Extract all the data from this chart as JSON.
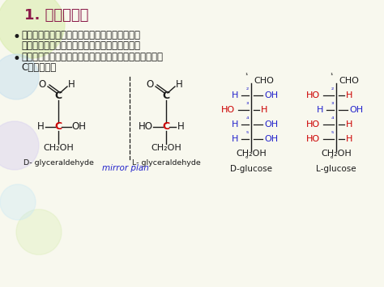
{
  "title": "1. 单糖的结构",
  "title_color": "#8B1A4A",
  "bg_color": "#f8f8ee",
  "bullet1a": "根据所含碳原子数目分为丙糖、丁糖、戊糖和己",
  "bullet1b": "糖、庚糖。单糖构型由甘油醛和二羟丙酮派生。",
  "bullet2a": "如所有的醛糖都可看成是由甘油醛的醛基碳下端逐个插入",
  "bullet2b": "C延伸而成。",
  "label_D_glycer": "D- glyceraldehyde",
  "label_L_glycer": "L- glyceraldehyde",
  "label_mirror": "mirror plan",
  "label_D_glucose": "D-glucose",
  "label_L_glucose": "L-glucose",
  "black": "#1a1a1a",
  "red": "#cc0000",
  "blue": "#2222cc",
  "carbon_color": "#cc0000",
  "deco_colors": [
    "#e8f5c8",
    "#d8eef8",
    "#e8d8f0",
    "#e0eaa0"
  ]
}
